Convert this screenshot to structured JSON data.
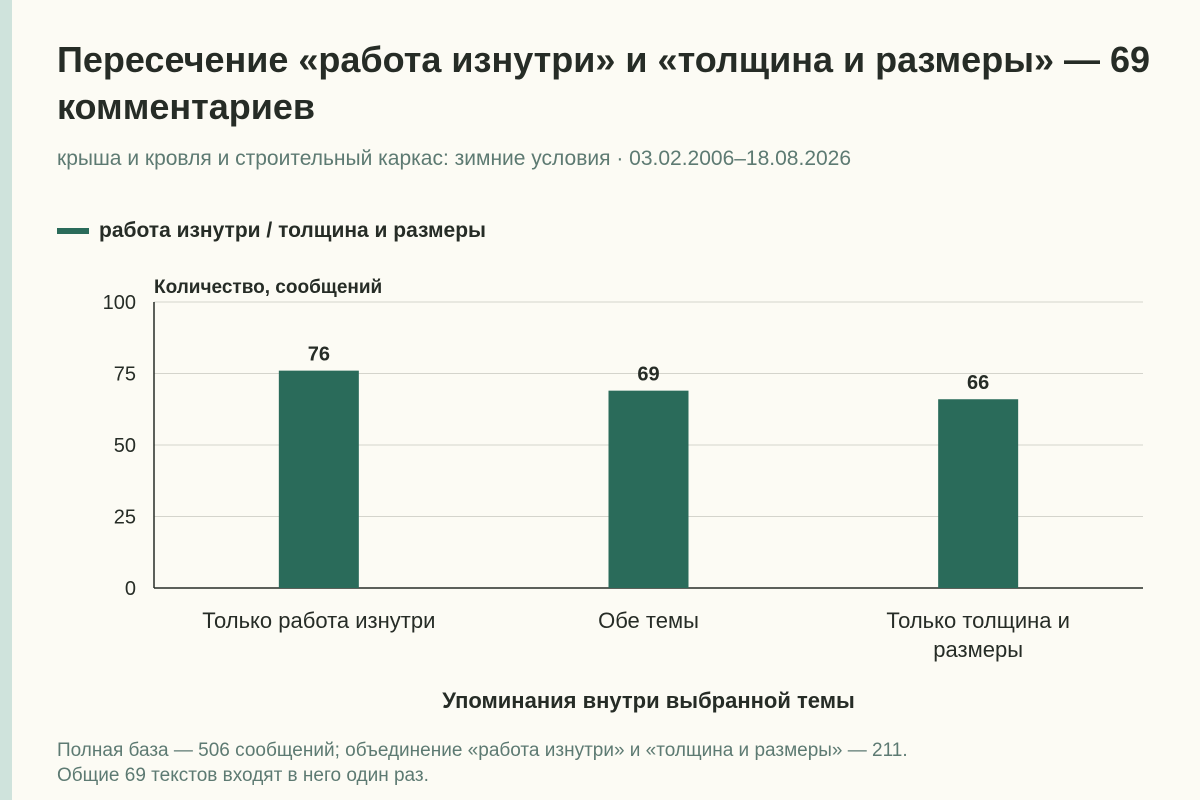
{
  "title": "Пересечение «работа изнутри» и «толщина и размеры» — 69 комментариев",
  "subtitle": "крыша и кровля и строительный каркас: зимние условия · 03.02.2006–18.08.2026",
  "legend": {
    "label": "работа изнутри / толщина и размеры",
    "color": "#2a6b5a"
  },
  "footnote": {
    "line1": "Полная база — 506 сообщений; объединение «работа изнутри» и «толщина и размеры» — 211.",
    "line2": "Общие 69 текстов входят в него один раз."
  },
  "chart_data": {
    "type": "bar",
    "categories": [
      "Только работа изнутри",
      "Обе темы",
      "Только толщина и размеры"
    ],
    "category_lines": [
      [
        "Только работа изнутри"
      ],
      [
        "Обе темы"
      ],
      [
        "Только толщина и",
        "размеры"
      ]
    ],
    "series": [
      {
        "name": "работа изнутри / толщина и размеры",
        "values": [
          76,
          69,
          66
        ],
        "color": "#2a6b5a"
      }
    ],
    "ylabel": "Количество, сообщений",
    "xlabel": "Упоминания внутри выбранной темы",
    "ylim": [
      0,
      100
    ],
    "yticks": [
      0,
      25,
      50,
      75,
      100
    ],
    "grid": true,
    "legend_position": "top-left",
    "data_labels": true
  }
}
